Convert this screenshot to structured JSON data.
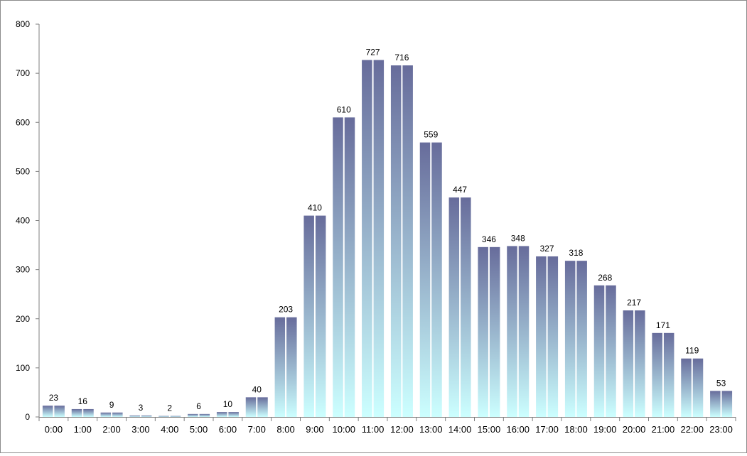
{
  "chart_data": {
    "type": "bar",
    "categories": [
      "0:00",
      "1:00",
      "2:00",
      "3:00",
      "4:00",
      "5:00",
      "6:00",
      "7:00",
      "8:00",
      "9:00",
      "10:00",
      "11:00",
      "12:00",
      "13:00",
      "14:00",
      "15:00",
      "16:00",
      "17:00",
      "18:00",
      "19:00",
      "20:00",
      "21:00",
      "22:00",
      "23:00"
    ],
    "series": [
      {
        "values": [
          23,
          16,
          9,
          3,
          2,
          6,
          10,
          40,
          203,
          410,
          610,
          727,
          716,
          559,
          447,
          346,
          348,
          327,
          318,
          268,
          217,
          171,
          119,
          53
        ]
      },
      {
        "values": [
          23,
          16,
          9,
          3,
          2,
          6,
          10,
          40,
          203,
          410,
          610,
          727,
          716,
          559,
          447,
          346,
          348,
          327,
          318,
          268,
          217,
          171,
          119,
          53
        ]
      }
    ],
    "data_labels": [
      23,
      16,
      9,
      3,
      2,
      6,
      10,
      40,
      203,
      410,
      610,
      727,
      716,
      559,
      447,
      346,
      348,
      327,
      318,
      268,
      217,
      171,
      119,
      53
    ],
    "y_ticks": [
      0,
      100,
      200,
      300,
      400,
      500,
      600,
      700,
      800
    ],
    "ylim": [
      0,
      800
    ],
    "title": "",
    "xlabel": "",
    "ylabel": "",
    "grid": false,
    "legend": "none",
    "colors": {
      "bar_top": "#676c9b",
      "bar_bottom": "#ccffff",
      "axis": "#7f7f7f",
      "frame": "#8c8c8c"
    }
  }
}
